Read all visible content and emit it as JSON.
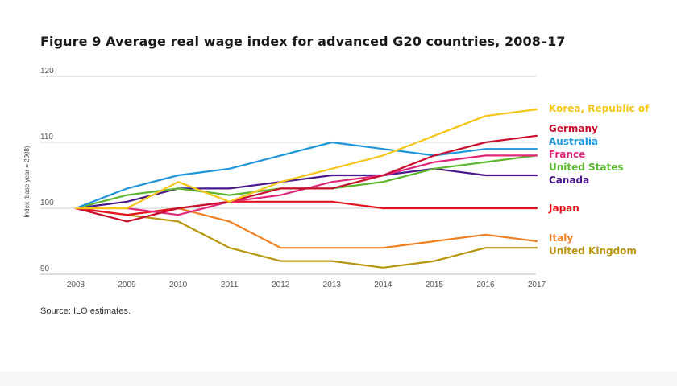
{
  "figure": {
    "title": "Figure 9  Average real wage index for advanced G20 countries, 2008–17",
    "source": "Source: ILO estimates."
  },
  "chart_data": {
    "type": "line",
    "title": "Figure 9  Average real wage index for advanced G20 countries, 2008–17",
    "xlabel": "",
    "ylabel": "Index (base year = 2008)",
    "x": [
      2008,
      2009,
      2010,
      2011,
      2012,
      2013,
      2014,
      2015,
      2016,
      2017
    ],
    "ylim": [
      90,
      120
    ],
    "yticks": [
      90,
      100,
      110,
      120
    ],
    "grid": true,
    "legend": "right, labels at line ends",
    "series": [
      {
        "name": "Korea, Republic of",
        "color": "#f5c518",
        "values": [
          100,
          100,
          104,
          101,
          104,
          106,
          108,
          111,
          114,
          115
        ]
      },
      {
        "name": "Germany",
        "color": "#c8102e",
        "values": [
          100,
          98,
          100,
          101,
          103,
          103,
          105,
          108,
          110,
          111
        ]
      },
      {
        "name": "Australia",
        "color": "#1e96d8",
        "values": [
          100,
          103,
          105,
          106,
          108,
          110,
          109,
          108,
          109,
          109
        ]
      },
      {
        "name": "France",
        "color": "#e0287a",
        "values": [
          100,
          100,
          99,
          101,
          102,
          104,
          105,
          107,
          108,
          108
        ]
      },
      {
        "name": "United States",
        "color": "#5db62f",
        "values": [
          100,
          102,
          103,
          102,
          103,
          103,
          104,
          106,
          107,
          108
        ]
      },
      {
        "name": "Canada",
        "color": "#4a1a8c",
        "values": [
          100,
          101,
          103,
          103,
          104,
          105,
          105,
          106,
          105,
          105
        ]
      },
      {
        "name": "Japan",
        "color": "#e3141e",
        "values": [
          100,
          99,
          100,
          101,
          101,
          101,
          100,
          100,
          100,
          100
        ]
      },
      {
        "name": "Italy",
        "color": "#f08020",
        "values": [
          100,
          99,
          100,
          98,
          94,
          94,
          94,
          95,
          96,
          95
        ]
      },
      {
        "name": "United Kingdom",
        "color": "#b8960f",
        "values": [
          100,
          99,
          98,
          94,
          92,
          92,
          91,
          92,
          94,
          94
        ]
      }
    ]
  }
}
